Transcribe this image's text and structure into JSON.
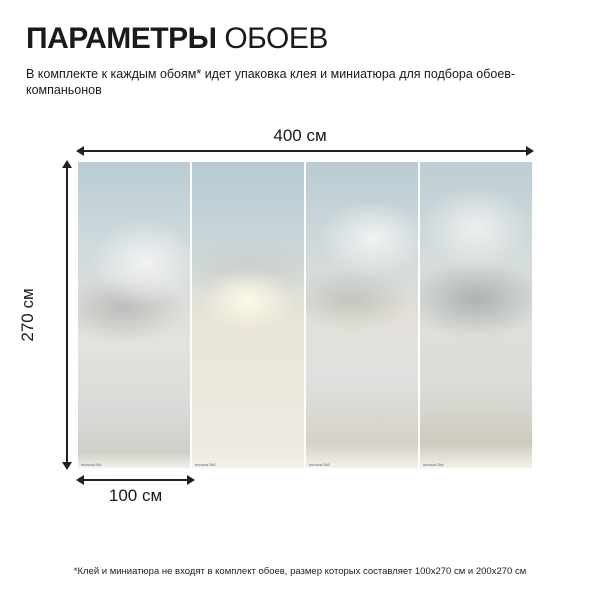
{
  "header": {
    "title_bold": "ПАРАМЕТРЫ",
    "title_light": "ОБОЕВ",
    "subtitle": "В комплекте к каждым обоям* идет упаковка клея и миниатюра для подбора обоев-компаньонов"
  },
  "dimensions": {
    "width": "400 см",
    "height": "270 см",
    "panel_width": "100 см"
  },
  "panels": [
    {
      "label": "полоса №1"
    },
    {
      "label": "полоса №2"
    },
    {
      "label": "полоса №3"
    },
    {
      "label": "полоса №4"
    }
  ],
  "footnote": "*Клей и миниатюра не входят в комплект обоев, размер которых составляет 100х270 см и 200х270 см"
}
